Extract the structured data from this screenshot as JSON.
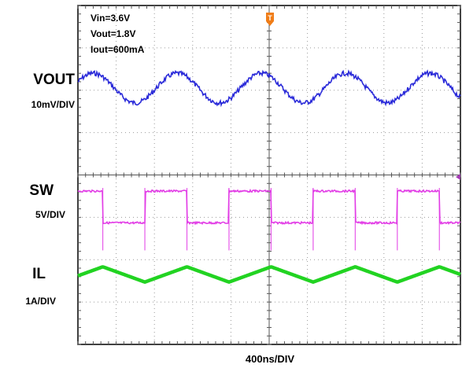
{
  "chart_data": {
    "type": "line",
    "title": "",
    "xlabel": "400ns/DIV",
    "ylabel": "",
    "grid": true,
    "x_divisions": 10,
    "y_divisions": 8,
    "annotation": {
      "lines": [
        "Vin=3.6V",
        "Vout=1.8V",
        "Iout=600mA"
      ],
      "placement": "top-left"
    },
    "trigger_marker": "T",
    "channels": [
      {
        "name": "VOUT",
        "scale": "10mV/DIV",
        "color": "#2b2bd9",
        "waveform": "sine with noise",
        "period_div": 2.2,
        "amplitude_div": 0.35
      },
      {
        "name": "SW",
        "scale": "5V/DIV",
        "color": "#e23de6",
        "waveform": "square",
        "period_div": 2.2,
        "high_div": 0.0,
        "low_div": -0.75
      },
      {
        "name": "IL",
        "scale": "1A/DIV",
        "color": "#22d322",
        "waveform": "triangle",
        "period_div": 2.2,
        "amplitude_div": 0.18
      }
    ]
  }
}
